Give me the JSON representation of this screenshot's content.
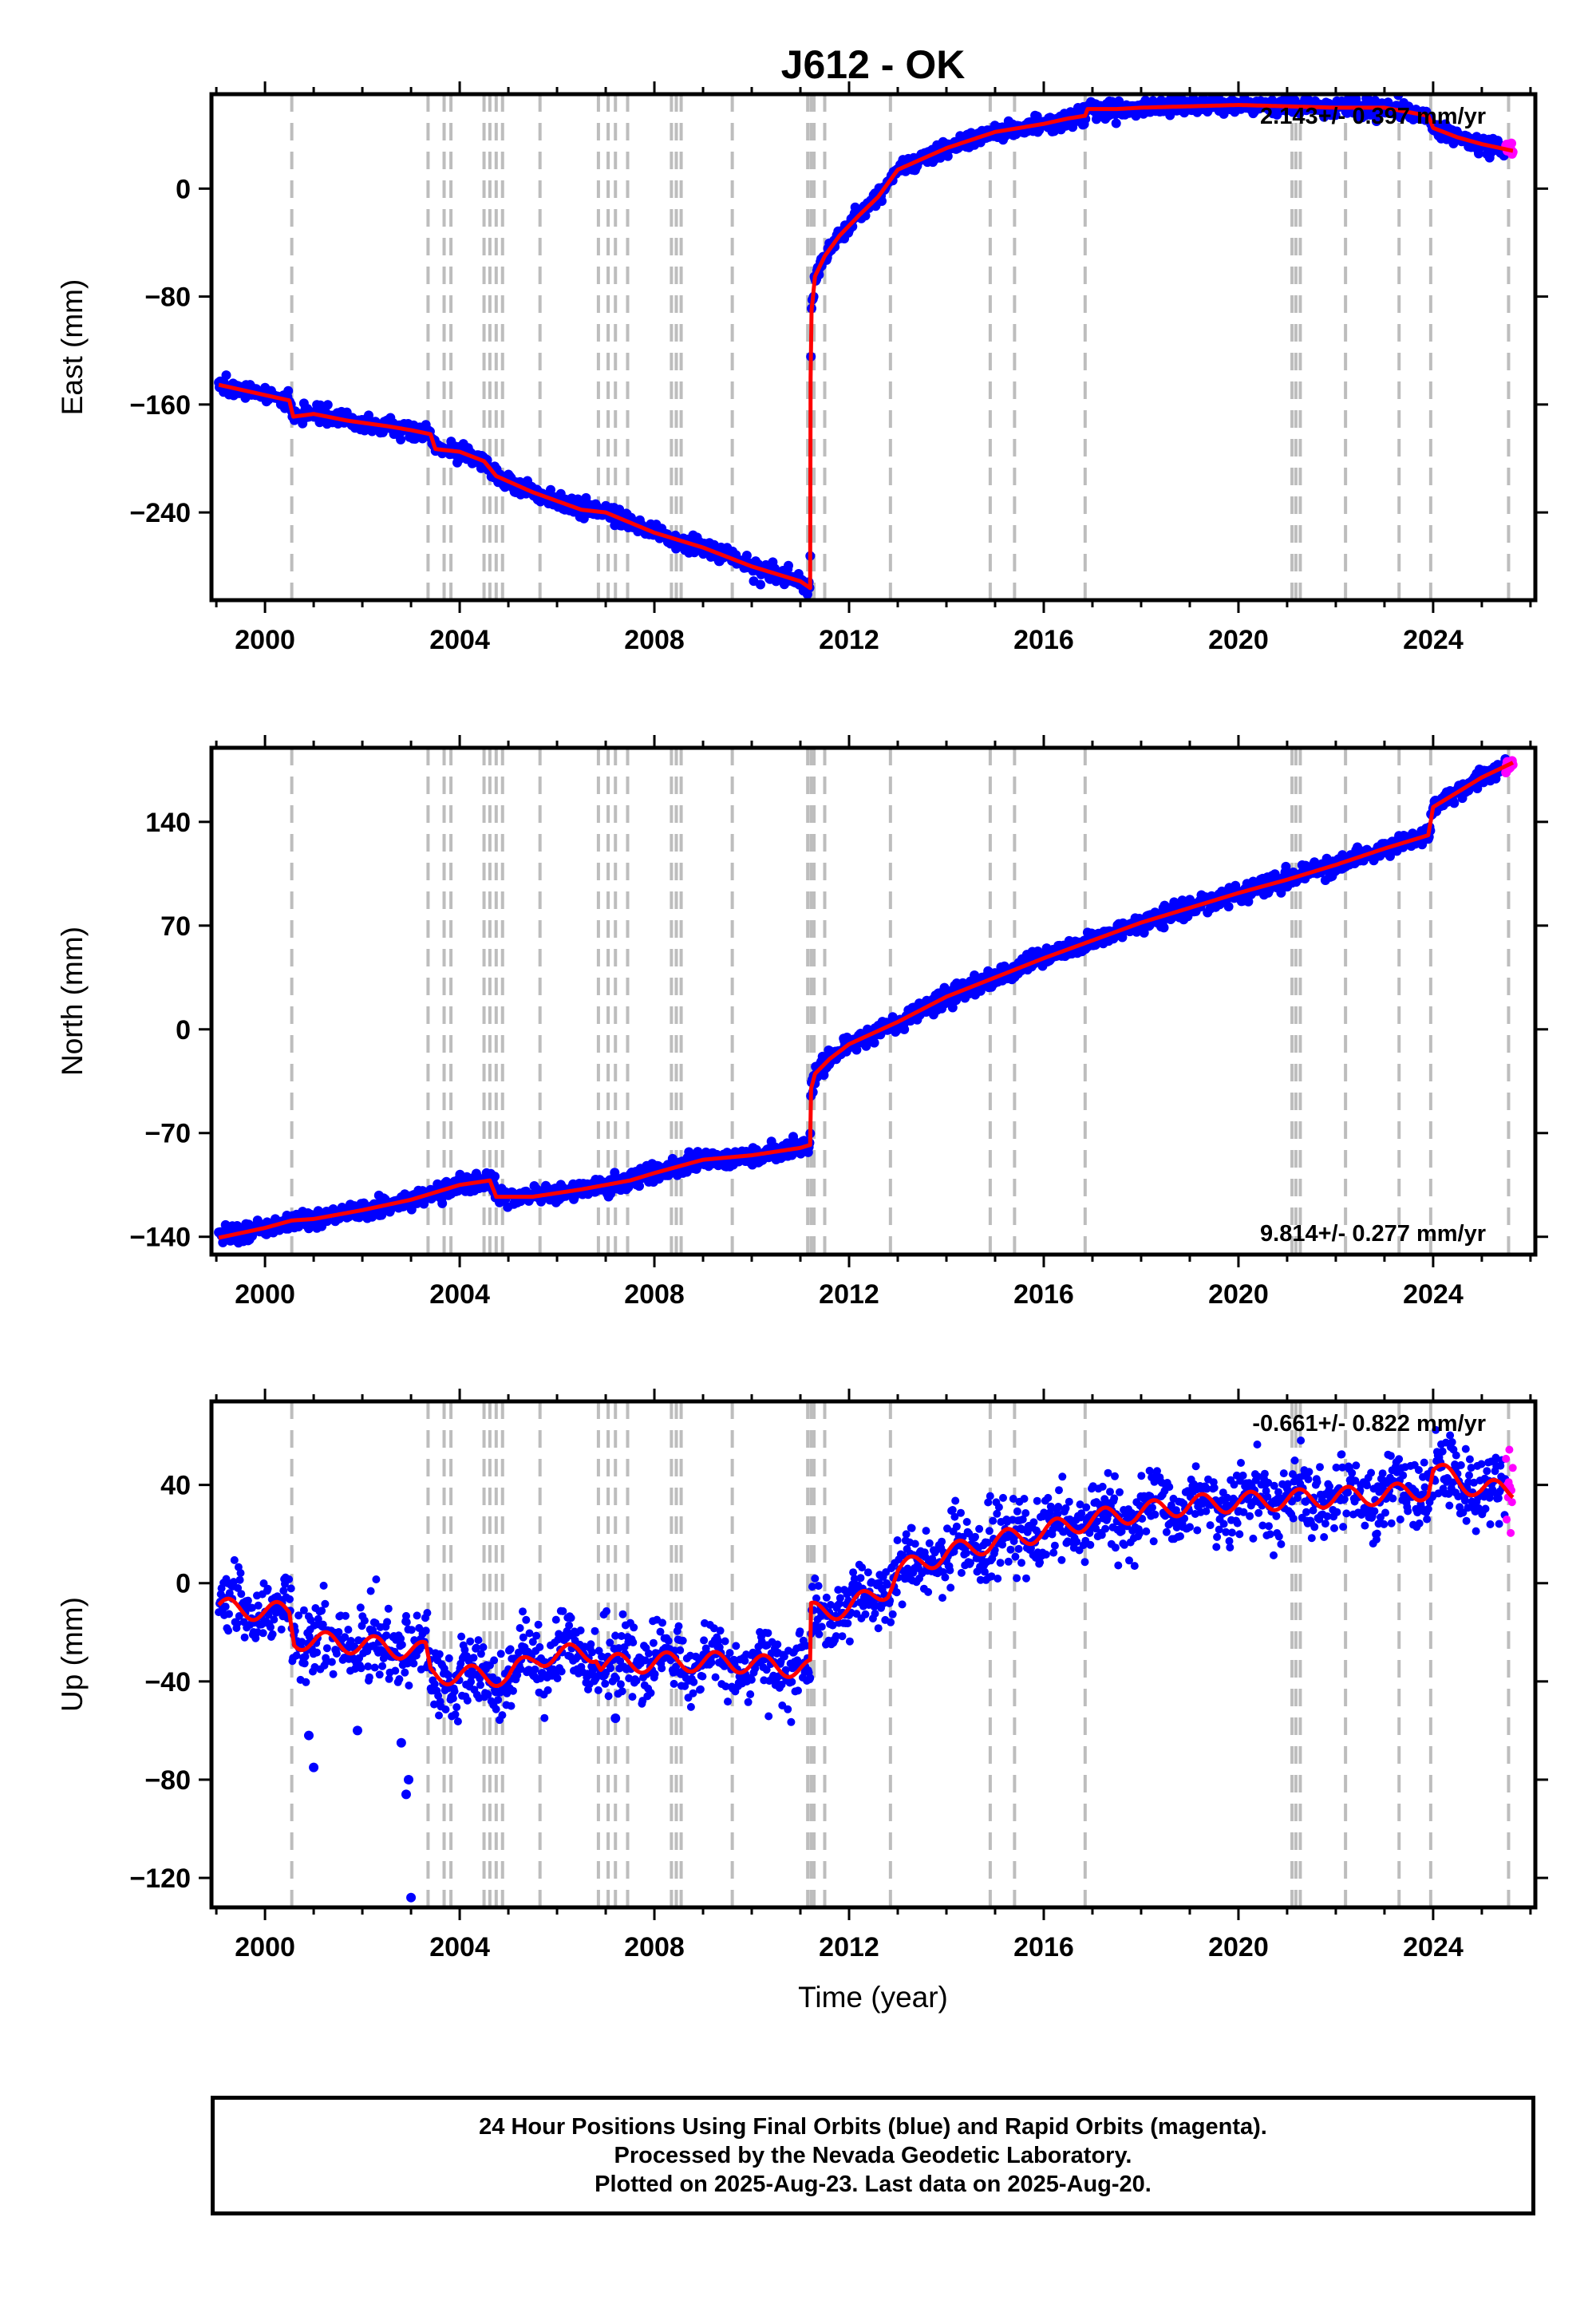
{
  "chart_data": {
    "type": "scatter",
    "title": "J612 - OK",
    "xlabel": "Time (year)",
    "xlim": [
      1998.9,
      2026.1
    ],
    "x_ticks": [
      2000,
      2004,
      2008,
      2012,
      2016,
      2020,
      2024
    ],
    "x_tick_labels": [
      "2000",
      "2004",
      "2008",
      "2012",
      "2016",
      "2020",
      "2024"
    ],
    "last_data_year": 2025.64,
    "event_lines": [
      2000.55,
      2003.35,
      2003.68,
      2003.82,
      2004.5,
      2004.62,
      2004.75,
      2004.88,
      2005.65,
      2006.85,
      2007.05,
      2007.2,
      2007.45,
      2008.35,
      2008.45,
      2008.55,
      2009.6,
      2011.15,
      2011.22,
      2011.28,
      2011.5,
      2012.85,
      2014.9,
      2015.4,
      2016.85,
      2021.1,
      2021.18,
      2021.27,
      2022.2,
      2023.3,
      2023.95,
      2025.55
    ],
    "grid": false,
    "panels": [
      {
        "name": "east",
        "ylabel": "East (mm)",
        "ylim": [
          -305,
          70
        ],
        "y_ticks": [
          -240,
          -160,
          -80,
          0
        ],
        "y_tick_labels": [
          "−240",
          "−160",
          "−80",
          "0"
        ],
        "rate_text": "2.143+/- 0.397 mm/yr",
        "rate_position": "top-right",
        "noise_mm": 3,
        "model": [
          [
            1999.0,
            -145
          ],
          [
            2000.5,
            -157
          ],
          [
            2000.58,
            -169
          ],
          [
            2001.0,
            -167
          ],
          [
            2001.7,
            -172
          ],
          [
            2002.5,
            -176
          ],
          [
            2003.0,
            -179
          ],
          [
            2003.4,
            -182
          ],
          [
            2003.5,
            -193
          ],
          [
            2004.0,
            -195
          ],
          [
            2004.5,
            -202
          ],
          [
            2004.75,
            -213
          ],
          [
            2005.5,
            -225
          ],
          [
            2006.5,
            -238
          ],
          [
            2007.0,
            -240
          ],
          [
            2008.0,
            -255
          ],
          [
            2009.0,
            -266
          ],
          [
            2010.0,
            -280
          ],
          [
            2011.0,
            -291
          ],
          [
            2011.2,
            -296
          ],
          [
            2011.21,
            -140
          ],
          [
            2011.23,
            -90
          ],
          [
            2011.3,
            -65
          ],
          [
            2011.5,
            -50
          ],
          [
            2011.8,
            -35
          ],
          [
            2012.2,
            -20
          ],
          [
            2012.6,
            -6
          ],
          [
            2012.88,
            8
          ],
          [
            2013.0,
            14
          ],
          [
            2013.5,
            22
          ],
          [
            2014.0,
            30
          ],
          [
            2014.5,
            36
          ],
          [
            2015.0,
            42
          ],
          [
            2015.5,
            45
          ],
          [
            2016.0,
            48
          ],
          [
            2016.5,
            52
          ],
          [
            2016.85,
            54
          ],
          [
            2016.9,
            59
          ],
          [
            2017.5,
            59
          ],
          [
            2018.0,
            60
          ],
          [
            2019.0,
            61
          ],
          [
            2020.0,
            62
          ],
          [
            2021.0,
            61
          ],
          [
            2022.0,
            60
          ],
          [
            2023.0,
            60
          ],
          [
            2023.9,
            54
          ],
          [
            2024.0,
            45
          ],
          [
            2024.5,
            38
          ],
          [
            2025.0,
            33
          ],
          [
            2025.64,
            28
          ]
        ]
      },
      {
        "name": "north",
        "ylabel": "North (mm)",
        "ylim": [
          -152,
          190
        ],
        "y_ticks": [
          -140,
          -70,
          0,
          70,
          140
        ],
        "y_tick_labels": [
          "−140",
          "−70",
          "0",
          "70",
          "140"
        ],
        "rate_text": "9.814+/- 0.277 mm/yr",
        "rate_position": "bottom-right",
        "noise_mm": 3,
        "model": [
          [
            1999.0,
            -141
          ],
          [
            2000.0,
            -134
          ],
          [
            2000.55,
            -129
          ],
          [
            2001.0,
            -128
          ],
          [
            2002.0,
            -122
          ],
          [
            2003.0,
            -115
          ],
          [
            2003.5,
            -110
          ],
          [
            2004.0,
            -105
          ],
          [
            2004.62,
            -102
          ],
          [
            2004.75,
            -113
          ],
          [
            2005.5,
            -113
          ],
          [
            2006.5,
            -108
          ],
          [
            2007.5,
            -102
          ],
          [
            2008.0,
            -97
          ],
          [
            2009.0,
            -88
          ],
          [
            2010.0,
            -85
          ],
          [
            2011.0,
            -80
          ],
          [
            2011.2,
            -78
          ],
          [
            2011.22,
            -40
          ],
          [
            2011.3,
            -30
          ],
          [
            2011.6,
            -20
          ],
          [
            2012.0,
            -10
          ],
          [
            2013.0,
            5
          ],
          [
            2014.0,
            22
          ],
          [
            2015.0,
            35
          ],
          [
            2016.0,
            48
          ],
          [
            2017.0,
            60
          ],
          [
            2018.0,
            72
          ],
          [
            2019.0,
            82
          ],
          [
            2020.0,
            92
          ],
          [
            2021.0,
            101
          ],
          [
            2022.0,
            111
          ],
          [
            2023.0,
            122
          ],
          [
            2023.9,
            131
          ],
          [
            2024.0,
            150
          ],
          [
            2024.5,
            160
          ],
          [
            2025.0,
            170
          ],
          [
            2025.64,
            180
          ]
        ]
      },
      {
        "name": "up",
        "ylabel": "Up (mm)",
        "ylim": [
          -132,
          74
        ],
        "y_ticks": [
          -120,
          -80,
          -40,
          0,
          40
        ],
        "y_tick_labels": [
          "−120",
          "−80",
          "−40",
          "0",
          "40"
        ],
        "rate_text": "-0.661+/- 0.822 mm/yr",
        "rate_position": "top-right",
        "noise_mm": 7,
        "seasonal_mm": 4,
        "outliers": [
          [
            2000.9,
            -62
          ],
          [
            2001.0,
            -75
          ],
          [
            2002.9,
            -86
          ],
          [
            2002.95,
            -80
          ],
          [
            2003.0,
            -128
          ],
          [
            2002.8,
            -65
          ],
          [
            2001.9,
            -60
          ],
          [
            2007.2,
            -55
          ]
        ],
        "model": [
          [
            1999.0,
            -10
          ],
          [
            2000.5,
            -12
          ],
          [
            2000.6,
            -23
          ],
          [
            2002.0,
            -25
          ],
          [
            2003.3,
            -28
          ],
          [
            2003.4,
            -37
          ],
          [
            2005.0,
            -38
          ],
          [
            2005.6,
            -30
          ],
          [
            2006.8,
            -28
          ],
          [
            2006.9,
            -33
          ],
          [
            2008.5,
            -32
          ],
          [
            2009.5,
            -32
          ],
          [
            2011.2,
            -35
          ],
          [
            2011.22,
            -12
          ],
          [
            2012.0,
            -10
          ],
          [
            2012.8,
            -2
          ],
          [
            2013.0,
            5
          ],
          [
            2014.0,
            12
          ],
          [
            2015.0,
            17
          ],
          [
            2016.0,
            21
          ],
          [
            2017.0,
            26
          ],
          [
            2018.0,
            29
          ],
          [
            2019.0,
            32
          ],
          [
            2020.0,
            33
          ],
          [
            2021.0,
            34
          ],
          [
            2022.0,
            35
          ],
          [
            2023.0,
            36
          ],
          [
            2023.9,
            38
          ],
          [
            2024.0,
            46
          ],
          [
            2024.5,
            42
          ],
          [
            2025.0,
            38
          ],
          [
            2025.64,
            38
          ]
        ]
      }
    ]
  },
  "footer": {
    "line1": "24 Hour Positions Using Final Orbits (blue) and Rapid Orbits (magenta).",
    "line2": "Processed by the Nevada Geodetic Laboratory.",
    "line3": "Plotted on 2025-Aug-23. Last data on 2025-Aug-20."
  },
  "colors": {
    "final_orbits": "#0000ff",
    "rapid_orbits": "#ff00ff",
    "model_line": "#ff0000",
    "event_lines": "#bdbdbd",
    "frame": "#000000"
  }
}
